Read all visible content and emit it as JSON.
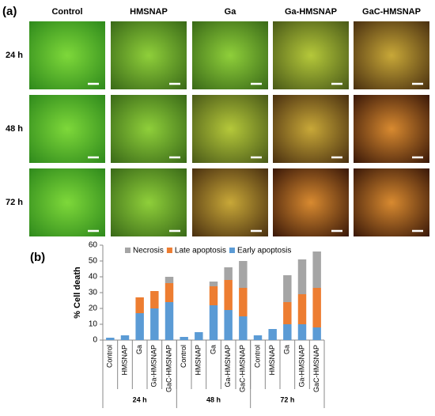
{
  "panel_a": {
    "label": "(a)",
    "columns": [
      "Control",
      "HMSNAP",
      "Ga",
      "Ga-HMSNAP",
      "GaC-HMSNAP"
    ],
    "rows": [
      "24 h",
      "48 h",
      "72 h"
    ]
  },
  "chart_data": {
    "type": "bar",
    "stacked": true,
    "panel_label": "(b)",
    "y_label": "% Cell death",
    "categories": [
      "Control",
      "HMSNAP",
      "Ga",
      "Ga-HMSNAP",
      "GaC-HMSNAP",
      "Control",
      "HMSNAP",
      "Ga",
      "Ga-HMSNAP",
      "GaC-HMSNAP",
      "Control",
      "HMSNAP",
      "Ga",
      "Ga-HMSNAP",
      "GaC-HMSNAP"
    ],
    "groups": [
      "24 h",
      "48 h",
      "72 h"
    ],
    "series": [
      {
        "name": "Early apoptosis",
        "color": "#5b9bd5",
        "values": [
          1.5,
          3,
          17,
          20,
          24,
          2,
          5,
          22,
          19,
          15,
          3,
          7,
          10,
          10,
          8
        ]
      },
      {
        "name": "Late apoptosis",
        "color": "#ed7d31",
        "values": [
          0,
          0,
          10,
          11,
          12,
          0,
          0,
          12,
          19,
          18,
          0,
          0,
          14,
          19,
          25
        ]
      },
      {
        "name": "Necrosis",
        "color": "#a5a5a5",
        "values": [
          0,
          0,
          0,
          0,
          4,
          0,
          0,
          3,
          8,
          17,
          0,
          0,
          17,
          22,
          23
        ]
      }
    ],
    "ylim": [
      0,
      60
    ],
    "yticks": [
      0,
      10,
      20,
      30,
      40,
      50,
      60
    ],
    "grid": false,
    "legend": "top"
  }
}
